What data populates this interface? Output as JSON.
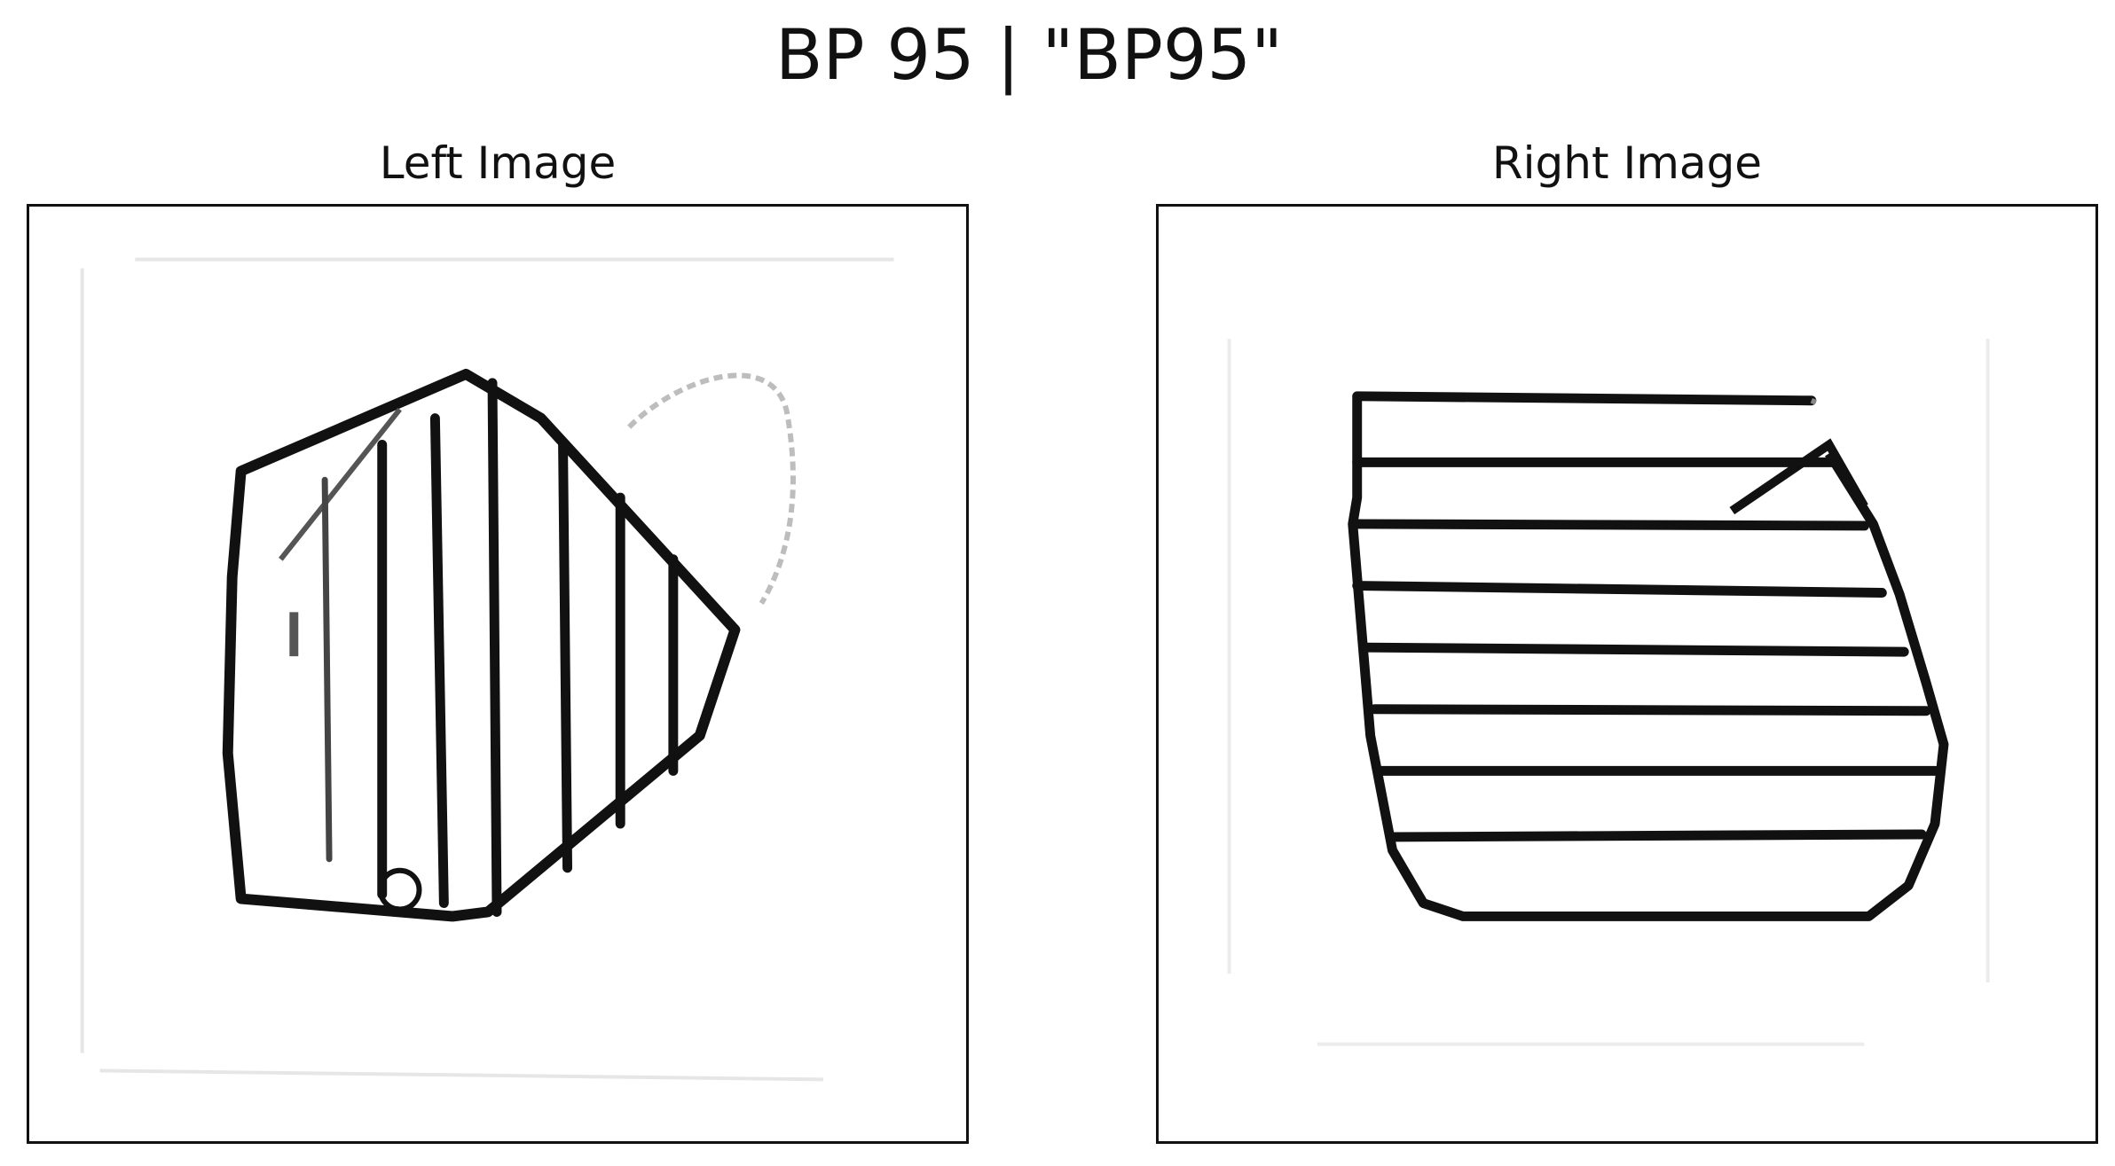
{
  "figure": {
    "title": "BP 95 | \"BP95\""
  },
  "panels": {
    "left": {
      "title": "Left Image"
    },
    "right": {
      "title": "Right Image"
    }
  },
  "colors": {
    "ink": "#111111",
    "faint": "#bdbdbd",
    "background": "#ffffff"
  }
}
